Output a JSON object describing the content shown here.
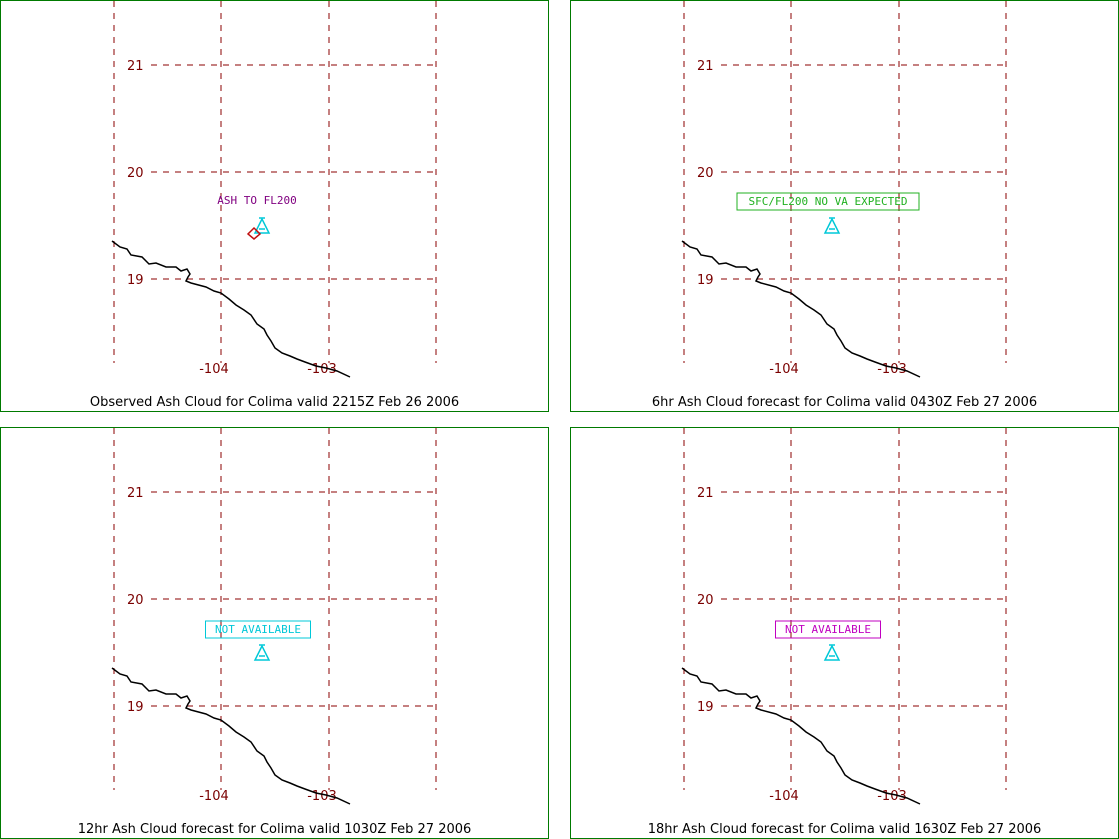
{
  "colors": {
    "frame": "#007a00",
    "grid": "#8b0000",
    "tick_text": "#7a0000",
    "coastline": "#000000",
    "volcano_symbol": "#00c8d8",
    "ash_area": "#c01010"
  },
  "map": {
    "lat_ticks": [
      21,
      20,
      19
    ],
    "lon_ticks": [
      -104,
      -103
    ],
    "volcano_name": "Colima"
  },
  "panels": [
    {
      "caption": "Observed Ash Cloud for Colima valid 2215Z Feb 26 2006",
      "label": {
        "text": "ASH TO FL200",
        "color": "#800080",
        "boxed": false
      },
      "ash_area": true,
      "volcano_icon": "volcano-icon"
    },
    {
      "caption": "6hr Ash Cloud forecast for Colima valid 0430Z Feb 27 2006",
      "label": {
        "text": "SFC/FL200 NO VA EXPECTED",
        "color": "#20b020",
        "boxed": true
      },
      "ash_area": false,
      "volcano_icon": "volcano-icon"
    },
    {
      "caption": "12hr Ash Cloud forecast for Colima valid 1030Z Feb 27 2006",
      "label": {
        "text": "NOT AVAILABLE",
        "color": "#00c8d8",
        "boxed": true
      },
      "ash_area": false,
      "volcano_icon": "volcano-icon"
    },
    {
      "caption": "18hr Ash Cloud forecast for Colima valid 1630Z Feb 27 2006",
      "label": {
        "text": "NOT AVAILABLE",
        "color": "#c000c0",
        "boxed": true
      },
      "ash_area": false,
      "volcano_icon": "volcano-icon"
    }
  ]
}
